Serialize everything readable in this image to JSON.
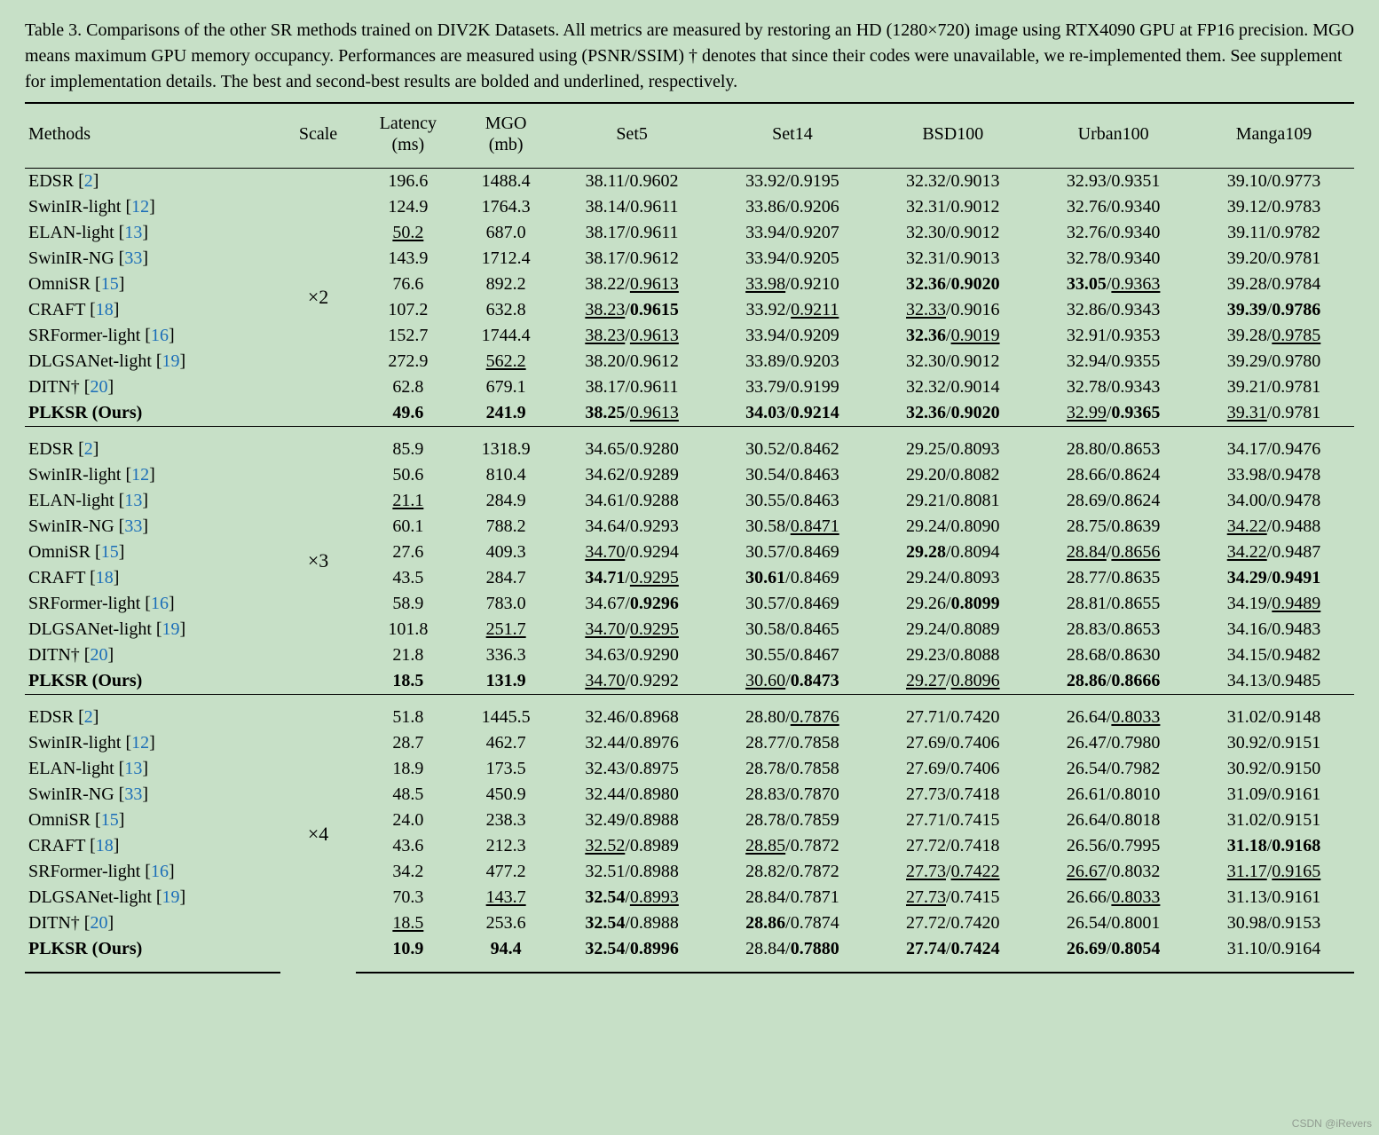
{
  "caption": "Table 3. Comparisons of the other SR methods trained on DIV2K Datasets. All metrics are measured by restoring an HD (1280×720) image using RTX4090 GPU at FP16 precision. MGO means maximum GPU memory occupancy. Performances are measured using (PSNR/SSIM) † denotes that since their codes were unavailable, we re-implemented them. See supplement for implementation details. The best and second-best results are bolded and underlined, respectively.",
  "columns": [
    "Methods",
    "Scale",
    "Latency\n(ms)",
    "MGO\n(mb)",
    "Set5",
    "Set14",
    "BSD100",
    "Urban100",
    "Manga109"
  ],
  "methods": [
    {
      "name": "EDSR",
      "cite": "2"
    },
    {
      "name": "SwinIR-light",
      "cite": "12"
    },
    {
      "name": "ELAN-light",
      "cite": "13"
    },
    {
      "name": "SwinIR-NG",
      "cite": "33"
    },
    {
      "name": "OmniSR",
      "cite": "15"
    },
    {
      "name": "CRAFT",
      "cite": "18"
    },
    {
      "name": "SRFormer-light",
      "cite": "16"
    },
    {
      "name": "DLGSANet-light",
      "cite": "19"
    },
    {
      "name": "DITN†",
      "cite": "20"
    },
    {
      "name": "PLKSR (Ours)",
      "cite": null,
      "bold": true
    }
  ],
  "groups": [
    {
      "scale": "×2",
      "rows": [
        {
          "lat": "196.6",
          "mgo": "1488.4",
          "c": [
            "38.11/0.9602",
            "33.92/0.9195",
            "32.32/0.9013",
            "32.93/0.9351",
            "39.10/0.9773"
          ]
        },
        {
          "lat": "124.9",
          "mgo": "1764.3",
          "c": [
            "38.14/0.9611",
            "33.86/0.9206",
            "32.31/0.9012",
            "32.76/0.9340",
            "39.12/0.9783"
          ]
        },
        {
          "lat": "<u>50.2</u>",
          "mgo": "687.0",
          "c": [
            "38.17/0.9611",
            "33.94/0.9207",
            "32.30/0.9012",
            "32.76/0.9340",
            "39.11/0.9782"
          ]
        },
        {
          "lat": "143.9",
          "mgo": "1712.4",
          "c": [
            "38.17/0.9612",
            "33.94/0.9205",
            "32.31/0.9013",
            "32.78/0.9340",
            "39.20/0.9781"
          ]
        },
        {
          "lat": "76.6",
          "mgo": "892.2",
          "c": [
            "38.22/<u>0.9613</u>",
            "<u>33.98</u>/0.9210",
            "<b>32.36</b>/<b>0.9020</b>",
            "<b>33.05</b>/<u>0.9363</u>",
            "39.28/0.9784"
          ]
        },
        {
          "lat": "107.2",
          "mgo": "632.8",
          "c": [
            "<u>38.23</u>/<b>0.9615</b>",
            "33.92/<u>0.9211</u>",
            "<u>32.33</u>/0.9016",
            "32.86/0.9343",
            "<b>39.39</b>/<b>0.9786</b>"
          ]
        },
        {
          "lat": "152.7",
          "mgo": "1744.4",
          "c": [
            "<u>38.23</u>/<u>0.9613</u>",
            "33.94/0.9209",
            "<b>32.36</b>/<u>0.9019</u>",
            "32.91/0.9353",
            "39.28/<u>0.9785</u>"
          ]
        },
        {
          "lat": "272.9",
          "mgo": "<u>562.2</u>",
          "c": [
            "38.20/0.9612",
            "33.89/0.9203",
            "32.30/0.9012",
            "32.94/0.9355",
            "39.29/0.9780"
          ]
        },
        {
          "lat": "62.8",
          "mgo": "679.1",
          "c": [
            "38.17/0.9611",
            "33.79/0.9199",
            "32.32/0.9014",
            "32.78/0.9343",
            "39.21/0.9781"
          ]
        },
        {
          "lat": "<b>49.6</b>",
          "mgo": "<b>241.9</b>",
          "c": [
            "<b>38.25</b>/<u>0.9613</u>",
            "<b>34.03</b>/<b>0.9214</b>",
            "<b>32.36</b>/<b>0.9020</b>",
            "<u>32.99</u>/<b>0.9365</b>",
            "<u>39.31</u>/0.9781"
          ]
        }
      ]
    },
    {
      "scale": "×3",
      "rows": [
        {
          "lat": "85.9",
          "mgo": "1318.9",
          "c": [
            "34.65/0.9280",
            "30.52/0.8462",
            "29.25/0.8093",
            "28.80/0.8653",
            "34.17/0.9476"
          ]
        },
        {
          "lat": "50.6",
          "mgo": "810.4",
          "c": [
            "34.62/0.9289",
            "30.54/0.8463",
            "29.20/0.8082",
            "28.66/0.8624",
            "33.98/0.9478"
          ]
        },
        {
          "lat": "<u>21.1</u>",
          "mgo": "284.9",
          "c": [
            "34.61/0.9288",
            "30.55/0.8463",
            "29.21/0.8081",
            "28.69/0.8624",
            "34.00/0.9478"
          ]
        },
        {
          "lat": "60.1",
          "mgo": "788.2",
          "c": [
            "34.64/0.9293",
            "30.58/<u>0.8471</u>",
            "29.24/0.8090",
            "28.75/0.8639",
            "<u>34.22</u>/0.9488"
          ]
        },
        {
          "lat": "27.6",
          "mgo": "409.3",
          "c": [
            "<u>34.70</u>/0.9294",
            "30.57/0.8469",
            "<b>29.28</b>/0.8094",
            "<u>28.84</u>/<u>0.8656</u>",
            "<u>34.22</u>/0.9487"
          ]
        },
        {
          "lat": "43.5",
          "mgo": "284.7",
          "c": [
            "<b>34.71</b>/<u>0.9295</u>",
            "<b>30.61</b>/0.8469",
            "29.24/0.8093",
            "28.77/0.8635",
            "<b>34.29</b>/<b>0.9491</b>"
          ]
        },
        {
          "lat": "58.9",
          "mgo": "783.0",
          "c": [
            "34.67/<b>0.9296</b>",
            "30.57/0.8469",
            "29.26/<b>0.8099</b>",
            "28.81/0.8655",
            "34.19/<u>0.9489</u>"
          ]
        },
        {
          "lat": "101.8",
          "mgo": "<u>251.7</u>",
          "c": [
            "<u>34.70</u>/<u>0.9295</u>",
            "30.58/0.8465",
            "29.24/0.8089",
            "28.83/0.8653",
            "34.16/0.9483"
          ]
        },
        {
          "lat": "21.8",
          "mgo": "336.3",
          "c": [
            "34.63/0.9290",
            "30.55/0.8467",
            "29.23/0.8088",
            "28.68/0.8630",
            "34.15/0.9482"
          ]
        },
        {
          "lat": "<b>18.5</b>",
          "mgo": "<b>131.9</b>",
          "c": [
            "<u>34.70</u>/0.9292",
            "<u>30.60</u>/<b>0.8473</b>",
            "<u>29.27</u>/<u>0.8096</u>",
            "<b>28.86</b>/<b>0.8666</b>",
            "34.13/0.9485"
          ]
        }
      ]
    },
    {
      "scale": "×4",
      "rows": [
        {
          "lat": "51.8",
          "mgo": "1445.5",
          "c": [
            "32.46/0.8968",
            "28.80/<u>0.7876</u>",
            "27.71/0.7420",
            "26.64/<u>0.8033</u>",
            "31.02/0.9148"
          ]
        },
        {
          "lat": "28.7",
          "mgo": "462.7",
          "c": [
            "32.44/0.8976",
            "28.77/0.7858",
            "27.69/0.7406",
            "26.47/0.7980",
            "30.92/0.9151"
          ]
        },
        {
          "lat": "18.9",
          "mgo": "173.5",
          "c": [
            "32.43/0.8975",
            "28.78/0.7858",
            "27.69/0.7406",
            "26.54/0.7982",
            "30.92/0.9150"
          ]
        },
        {
          "lat": "48.5",
          "mgo": "450.9",
          "c": [
            "32.44/0.8980",
            "28.83/0.7870",
            "27.73/0.7418",
            "26.61/0.8010",
            "31.09/0.9161"
          ]
        },
        {
          "lat": "24.0",
          "mgo": "238.3",
          "c": [
            "32.49/0.8988",
            "28.78/0.7859",
            "27.71/0.7415",
            "26.64/0.8018",
            "31.02/0.9151"
          ]
        },
        {
          "lat": "43.6",
          "mgo": "212.3",
          "c": [
            "<u>32.52</u>/0.8989",
            "<u>28.85</u>/0.7872",
            "27.72/0.7418",
            "26.56/0.7995",
            "<b>31.18</b>/<b>0.9168</b>"
          ]
        },
        {
          "lat": "34.2",
          "mgo": "477.2",
          "c": [
            "32.51/0.8988",
            "28.82/0.7872",
            "<u>27.73</u>/<u>0.7422</u>",
            "<u>26.67</u>/0.8032",
            "<u>31.17</u>/<u>0.9165</u>"
          ]
        },
        {
          "lat": "70.3",
          "mgo": "<u>143.7</u>",
          "c": [
            "<b>32.54</b>/<u>0.8993</u>",
            "28.84/0.7871",
            "<u>27.73</u>/0.7415",
            "26.66/<u>0.8033</u>",
            "31.13/0.9161"
          ]
        },
        {
          "lat": "<u>18.5</u>",
          "mgo": "253.6",
          "c": [
            "<b>32.54</b>/0.8988",
            "<b>28.86</b>/0.7874",
            "27.72/0.7420",
            "26.54/0.8001",
            "30.98/0.9153"
          ]
        },
        {
          "lat": "<b>10.9</b>",
          "mgo": "<b>94.4</b>",
          "c": [
            "<b>32.54</b>/<b>0.8996</b>",
            "28.84/<b>0.7880</b>",
            "<b>27.74</b>/<b>0.7424</b>",
            "<b>26.69</b>/<b>0.8054</b>",
            "31.10/0.9164"
          ]
        }
      ]
    }
  ],
  "watermark": "CSDN @iRevers",
  "colors": {
    "bg": "#c7e0c7",
    "cite": "#1a6db8",
    "rule": "#000000",
    "text": "#000000"
  },
  "font": {
    "family": "Times New Roman",
    "size_pt": 20
  }
}
